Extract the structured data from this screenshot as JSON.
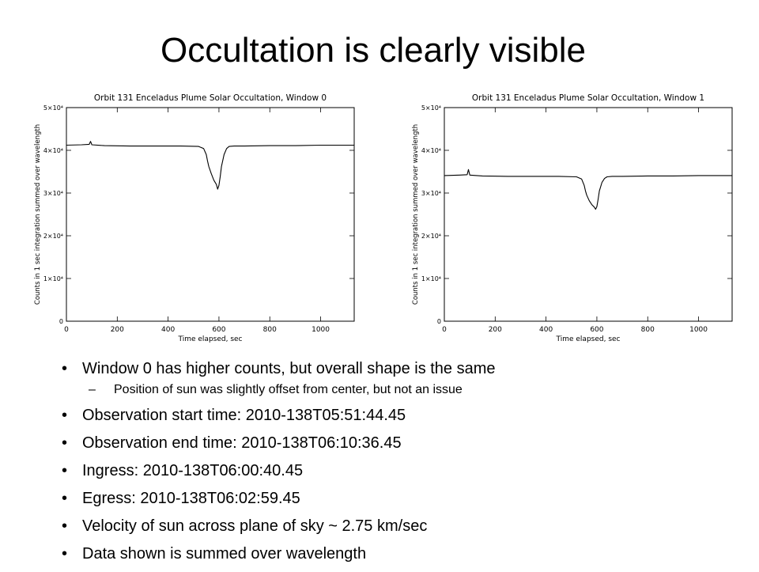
{
  "slide": {
    "title": "Occultation is clearly visible",
    "bullets": [
      {
        "level": 1,
        "text": "Window 0 has higher counts, but overall shape is the same"
      },
      {
        "level": 2,
        "text": "Position of sun was slightly offset from center, but not an issue"
      },
      {
        "level": 1,
        "text": "Observation start time:  2010-138T05:51:44.45"
      },
      {
        "level": 1,
        "text": "Observation end time:  2010-138T06:10:36.45"
      },
      {
        "level": 1,
        "text": "Ingress:  2010-138T06:00:40.45"
      },
      {
        "level": 1,
        "text": "Egress:  2010-138T06:02:59.45"
      },
      {
        "level": 1,
        "text": "Velocity of sun across plane of sky ~ 2.75 km/sec"
      },
      {
        "level": 1,
        "text": "Data shown is summed over wavelength"
      }
    ]
  },
  "chart_data": [
    {
      "type": "line",
      "title": "Orbit 131 Enceladus Plume Solar Occultation, Window 0",
      "xlabel": "Time elapsed, sec",
      "ylabel": "Counts in 1 sec integration summed over wavelength",
      "xlim": [
        0,
        1132
      ],
      "ylim": [
        0,
        50000
      ],
      "xticks": [
        0,
        200,
        400,
        600,
        800,
        1000
      ],
      "yticks": [
        0,
        10000,
        20000,
        30000,
        40000,
        50000
      ],
      "ytick_labels": [
        "0",
        "1×10⁴",
        "2×10⁴",
        "3×10⁴",
        "4×10⁴",
        "5×10⁴"
      ],
      "grid": false,
      "line_color": "#000000",
      "series": [
        {
          "x": [
            0,
            60,
            90,
            95,
            100,
            150,
            250,
            350,
            450,
            520,
            540,
            550,
            555,
            560,
            570,
            580,
            590,
            595,
            600,
            605,
            610,
            620,
            630,
            640,
            660,
            700,
            800,
            900,
            1000,
            1132
          ],
          "y": [
            41200,
            41300,
            41400,
            42100,
            41300,
            41100,
            41000,
            41000,
            41000,
            40900,
            40400,
            39000,
            37500,
            36200,
            34500,
            33000,
            32000,
            30900,
            31800,
            33800,
            36200,
            39000,
            40400,
            40900,
            41000,
            41000,
            41100,
            41100,
            41200,
            41200
          ]
        }
      ]
    },
    {
      "type": "line",
      "title": "Orbit 131 Enceladus Plume Solar Occultation, Window 1",
      "xlabel": "Time elapsed, sec",
      "ylabel": "Counts in 1 sec integration summed over wavelength",
      "xlim": [
        0,
        1132
      ],
      "ylim": [
        0,
        50000
      ],
      "xticks": [
        0,
        200,
        400,
        600,
        800,
        1000
      ],
      "yticks": [
        0,
        10000,
        20000,
        30000,
        40000,
        50000
      ],
      "ytick_labels": [
        "0",
        "1×10⁴",
        "2×10⁴",
        "3×10⁴",
        "4×10⁴",
        "5×10⁴"
      ],
      "grid": false,
      "line_color": "#000000",
      "series": [
        {
          "x": [
            0,
            60,
            90,
            95,
            100,
            150,
            250,
            350,
            450,
            520,
            540,
            550,
            555,
            560,
            570,
            580,
            590,
            595,
            600,
            605,
            610,
            620,
            630,
            640,
            660,
            700,
            800,
            900,
            1000,
            1132
          ],
          "y": [
            34100,
            34200,
            34300,
            35500,
            34200,
            34000,
            33900,
            33900,
            33900,
            33800,
            33300,
            31800,
            30500,
            29500,
            28200,
            27300,
            26700,
            26200,
            26800,
            28500,
            30500,
            32500,
            33400,
            33800,
            33900,
            33900,
            34000,
            34000,
            34100,
            34100
          ]
        }
      ]
    }
  ]
}
